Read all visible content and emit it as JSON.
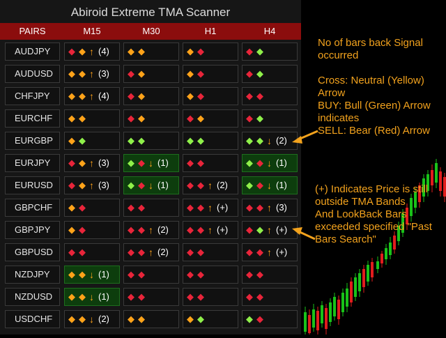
{
  "title": "Abiroid Extreme TMA Scanner",
  "columns": [
    "PAIRS",
    "M15",
    "M30",
    "H1",
    "H4"
  ],
  "colors": {
    "yellow": "#ffa31a",
    "green": "#8ff04a",
    "red": "#e8253a",
    "header_bg": "#8b0d0d",
    "highlight": "#0d3d0d",
    "note": "#f2a21d"
  },
  "rows": [
    {
      "pair": "AUDJPY",
      "cells": [
        {
          "s": [
            "red",
            "yellow",
            "up"
          ],
          "count": "(4)"
        },
        {
          "s": [
            "yellow",
            "yellow"
          ]
        },
        {
          "s": [
            "yellow",
            "red"
          ]
        },
        {
          "s": [
            "red",
            "green"
          ]
        }
      ]
    },
    {
      "pair": "AUDUSD",
      "cells": [
        {
          "s": [
            "yellow",
            "yellow",
            "up"
          ],
          "count": "(3)"
        },
        {
          "s": [
            "red",
            "yellow"
          ]
        },
        {
          "s": [
            "yellow",
            "red"
          ]
        },
        {
          "s": [
            "red",
            "green"
          ]
        }
      ]
    },
    {
      "pair": "CHFJPY",
      "cells": [
        {
          "s": [
            "yellow",
            "yellow",
            "up"
          ],
          "count": "(4)"
        },
        {
          "s": [
            "red",
            "yellow"
          ]
        },
        {
          "s": [
            "yellow",
            "red"
          ]
        },
        {
          "s": [
            "red",
            "red"
          ]
        }
      ]
    },
    {
      "pair": "EURCHF",
      "cells": [
        {
          "s": [
            "yellow",
            "yellow"
          ]
        },
        {
          "s": [
            "red",
            "yellow"
          ]
        },
        {
          "s": [
            "red",
            "yellow"
          ]
        },
        {
          "s": [
            "red",
            "green"
          ]
        }
      ]
    },
    {
      "pair": "EURGBP",
      "cells": [
        {
          "s": [
            "yellow",
            "green"
          ]
        },
        {
          "s": [
            "green",
            "green"
          ]
        },
        {
          "s": [
            "green",
            "green"
          ]
        },
        {
          "s": [
            "green",
            "green",
            "down"
          ],
          "count": "(2)"
        }
      ]
    },
    {
      "pair": "EURJPY",
      "cells": [
        {
          "s": [
            "red",
            "yellow",
            "up"
          ],
          "count": "(3)"
        },
        {
          "s": [
            "green",
            "red",
            "down"
          ],
          "count": "(1)",
          "hl": true
        },
        {
          "s": [
            "red",
            "red"
          ]
        },
        {
          "s": [
            "green",
            "red",
            "down"
          ],
          "count": "(1)",
          "hl": true
        }
      ]
    },
    {
      "pair": "EURUSD",
      "cells": [
        {
          "s": [
            "red",
            "yellow",
            "up"
          ],
          "count": "(3)"
        },
        {
          "s": [
            "green",
            "red",
            "down"
          ],
          "count": "(1)",
          "hl": true
        },
        {
          "s": [
            "red",
            "red",
            "up"
          ],
          "count": "(2)"
        },
        {
          "s": [
            "green",
            "red",
            "down"
          ],
          "count": "(1)",
          "hl": true
        }
      ]
    },
    {
      "pair": "GBPCHF",
      "cells": [
        {
          "s": [
            "yellow",
            "red"
          ]
        },
        {
          "s": [
            "red",
            "red"
          ]
        },
        {
          "s": [
            "red",
            "red",
            "up"
          ],
          "count": "(+)"
        },
        {
          "s": [
            "red",
            "red",
            "up"
          ],
          "count": "(3)"
        }
      ]
    },
    {
      "pair": "GBPJPY",
      "cells": [
        {
          "s": [
            "yellow",
            "red"
          ]
        },
        {
          "s": [
            "red",
            "red",
            "up"
          ],
          "count": "(2)"
        },
        {
          "s": [
            "red",
            "red",
            "up"
          ],
          "count": "(+)"
        },
        {
          "s": [
            "red",
            "green",
            "up"
          ],
          "count": "(+)"
        }
      ]
    },
    {
      "pair": "GBPUSD",
      "cells": [
        {
          "s": [
            "red",
            "red"
          ]
        },
        {
          "s": [
            "red",
            "red",
            "up"
          ],
          "count": "(2)"
        },
        {
          "s": [
            "red",
            "red"
          ]
        },
        {
          "s": [
            "red",
            "red",
            "up"
          ],
          "count": "(+)"
        }
      ]
    },
    {
      "pair": "NZDJPY",
      "cells": [
        {
          "s": [
            "yellow",
            "yellow",
            "down"
          ],
          "count": "(1)",
          "hl": true
        },
        {
          "s": [
            "red",
            "red"
          ]
        },
        {
          "s": [
            "red",
            "red"
          ]
        },
        {
          "s": [
            "red",
            "red"
          ]
        }
      ]
    },
    {
      "pair": "NZDUSD",
      "cells": [
        {
          "s": [
            "yellow",
            "yellow",
            "down"
          ],
          "count": "(1)",
          "hl": true
        },
        {
          "s": [
            "red",
            "red"
          ]
        },
        {
          "s": [
            "red",
            "red"
          ]
        },
        {
          "s": [
            "red",
            "red"
          ]
        }
      ]
    },
    {
      "pair": "USDCHF",
      "cells": [
        {
          "s": [
            "yellow",
            "yellow",
            "down"
          ],
          "count": "(2)"
        },
        {
          "s": [
            "yellow",
            "yellow"
          ]
        },
        {
          "s": [
            "yellow",
            "green"
          ]
        },
        {
          "s": [
            "green",
            "red"
          ]
        }
      ]
    }
  ],
  "note1": "No of bars back Signal occurred\n\nCross: Neutral (Yellow) Arrow\nBUY: Bull (Green) Arrow indicates\nSELL: Bear (Red) Arrow",
  "note2": "(+) Indicates Price is still outside TMA Bands\nAnd LookBack Bars exceeded specified \"Past Bars Search\""
}
